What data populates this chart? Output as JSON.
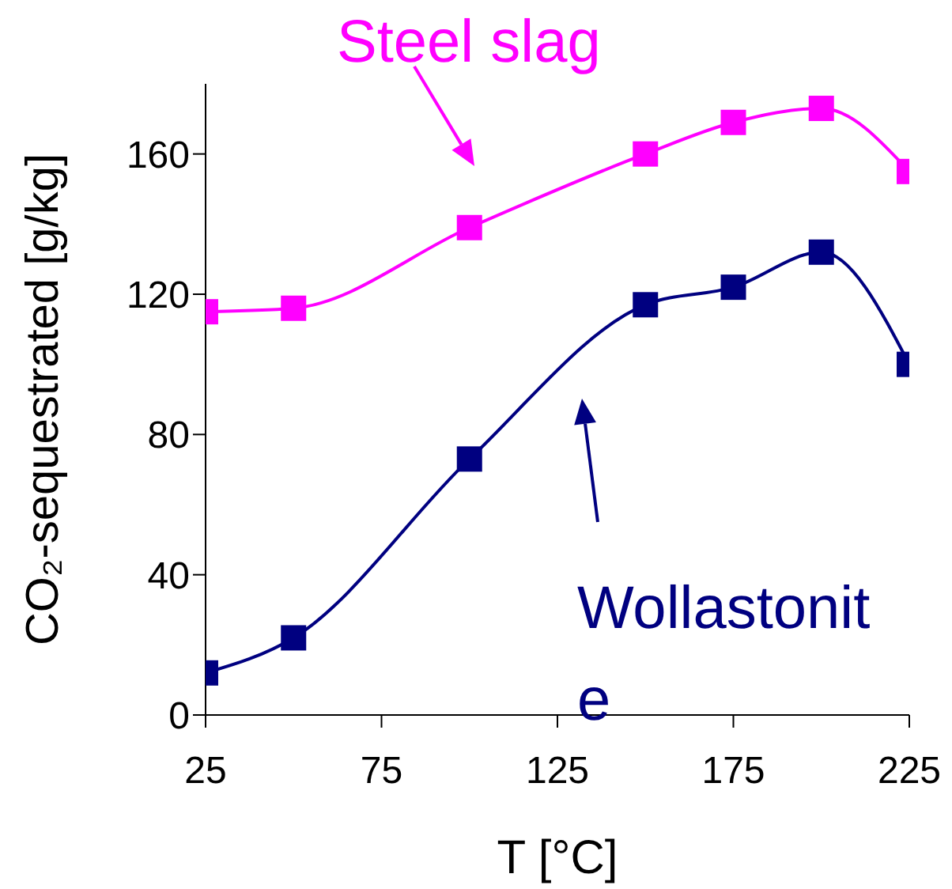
{
  "chart_data": {
    "type": "line",
    "xlabel": "T [°C]",
    "ylabel": "CO₂-sequestrated [g/kg]",
    "x": [
      25,
      50,
      100,
      150,
      175,
      200,
      225
    ],
    "series": [
      {
        "name": "Steel slag",
        "color": "#ff00ff",
        "values": [
          115,
          116,
          139,
          160,
          169,
          173,
          155
        ]
      },
      {
        "name": "Wollastonite",
        "color": "#000080",
        "values": [
          12,
          22,
          73,
          117,
          122,
          132,
          100
        ]
      }
    ],
    "xlim": [
      25,
      225
    ],
    "xticks": [
      25,
      75,
      125,
      175,
      225
    ],
    "ylim": [
      0,
      180
    ],
    "yticks": [
      0,
      40,
      80,
      120,
      160
    ],
    "grid": false,
    "marker": "square",
    "line_style": "solid"
  }
}
